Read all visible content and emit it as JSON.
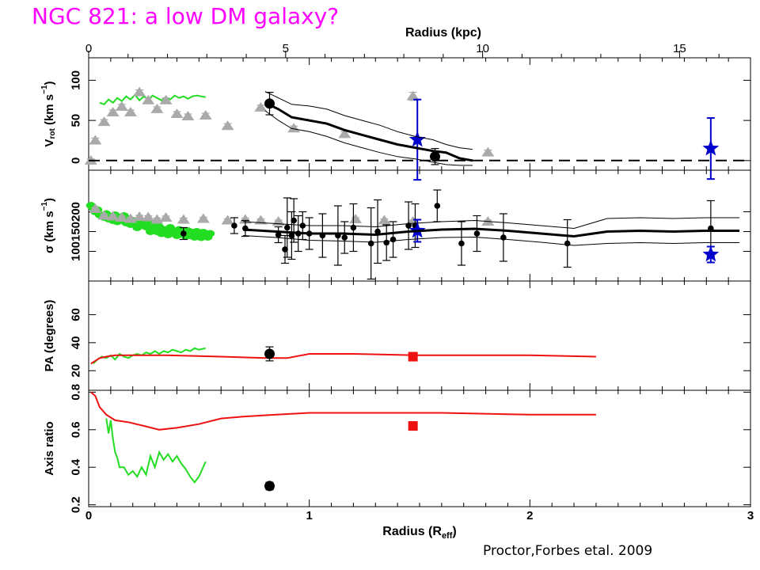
{
  "title": "NGC 821: a low DM galaxy?",
  "credit": "Proctor,Forbes etal. 2009",
  "colors": {
    "magenta": "#ff00ff",
    "green": "#22dd22",
    "gray": "#aaaaaa",
    "blue": "#0000cc",
    "red": "#ee1111",
    "black": "#000000"
  },
  "chart_data": {
    "type": "scatter",
    "top_axis": {
      "label": "Radius (kpc)",
      "ticks": [
        0,
        5,
        10,
        15
      ],
      "range": [
        0,
        16.8
      ]
    },
    "bottom_axis": {
      "label": "Radius (R_eff)",
      "label_main": "Radius (R",
      "label_sub": "eff",
      "label_end": ")",
      "ticks": [
        0,
        1,
        2,
        3
      ],
      "range": [
        0,
        3
      ]
    },
    "panels": [
      {
        "id": "vrot",
        "ylabel_parts": [
          "V",
          "rot",
          " (km s",
          "−1",
          ")"
        ],
        "yticks": [
          0,
          50,
          100
        ],
        "ylim": [
          -12,
          128
        ],
        "series": [
          {
            "name": "green_line",
            "type": "line",
            "x": [
              0.05,
              0.07,
              0.09,
              0.11,
              0.13,
              0.15,
              0.17,
              0.19,
              0.21,
              0.23,
              0.25,
              0.27,
              0.29,
              0.31,
              0.33,
              0.35,
              0.37,
              0.39,
              0.41,
              0.43,
              0.45,
              0.47,
              0.49,
              0.51,
              0.53
            ],
            "y": [
              72,
              70,
              76,
              72,
              78,
              74,
              80,
              76,
              82,
              75,
              80,
              76,
              81,
              78,
              75,
              79,
              76,
              81,
              78,
              80,
              77,
              80,
              81,
              80,
              79
            ]
          },
          {
            "name": "gray_triangles",
            "type": "scatter",
            "x": [
              0.01,
              0.03,
              0.07,
              0.11,
              0.15,
              0.19,
              0.23,
              0.27,
              0.31,
              0.35,
              0.4,
              0.45,
              0.53,
              0.63,
              0.78,
              0.93,
              1.16,
              1.47,
              1.81
            ],
            "y": [
              0,
              25,
              48,
              60,
              67,
              60,
              85,
              75,
              64,
              75,
              58,
              55,
              56,
              43,
              66,
              40,
              33,
              80,
              10
            ],
            "yerr": [
              2,
              3,
              3,
              3,
              3,
              3,
              3,
              3,
              3,
              3,
              3,
              3,
              3,
              3,
              3,
              3,
              3,
              5,
              3
            ]
          },
          {
            "name": "black_circles",
            "type": "scatter",
            "x": [
              0.82,
              1.57
            ],
            "y": [
              71,
              5
            ],
            "yerr": [
              14,
              10
            ]
          },
          {
            "name": "blue_stars",
            "type": "scatter",
            "x": [
              1.49,
              2.82
            ],
            "y": [
              26,
              15
            ],
            "yerr": [
              50,
              38
            ]
          },
          {
            "name": "model",
            "type": "line",
            "x": [
              0.8,
              0.86,
              0.92,
              1.0,
              1.08,
              1.16,
              1.24,
              1.32,
              1.4,
              1.48,
              1.56,
              1.62,
              1.68,
              1.74
            ],
            "y": [
              72,
              64,
              54,
              50,
              46,
              38,
              32,
              26,
              20,
              16,
              12,
              10,
              3,
              0
            ]
          },
          {
            "name": "model_upper",
            "type": "line",
            "x": [
              0.8,
              0.86,
              0.92,
              1.0,
              1.08,
              1.16,
              1.24,
              1.32,
              1.4,
              1.48,
              1.56,
              1.62,
              1.68,
              1.74
            ],
            "y": [
              86,
              78,
              70,
              68,
              64,
              56,
              50,
              44,
              36,
              30,
              26,
              20,
              16,
              14
            ]
          },
          {
            "name": "model_lower",
            "type": "line",
            "x": [
              0.8,
              0.86,
              0.92,
              1.0,
              1.08,
              1.16,
              1.24,
              1.32,
              1.4,
              1.48,
              1.56,
              1.62,
              1.68,
              1.74
            ],
            "y": [
              62,
              50,
              40,
              36,
              30,
              22,
              16,
              10,
              5,
              2,
              -2,
              -5,
              -6,
              -6
            ]
          },
          {
            "name": "zero",
            "type": "line",
            "dashed": true,
            "x": [
              0,
              3
            ],
            "y": [
              0,
              0
            ]
          }
        ]
      },
      {
        "id": "sigma",
        "ylabel_parts": [
          "σ (km s",
          "−1",
          ")"
        ],
        "yticks": [
          100,
          150,
          200
        ],
        "ylim": [
          25,
          305
        ],
        "series": [
          {
            "name": "green_points",
            "type": "scatter",
            "x": [
              0.01,
              0.02,
              0.03,
              0.04,
              0.05,
              0.06,
              0.07,
              0.08,
              0.09,
              0.1,
              0.11,
              0.12,
              0.13,
              0.14,
              0.15,
              0.16,
              0.17,
              0.18,
              0.19,
              0.2,
              0.21,
              0.22,
              0.23,
              0.24,
              0.25,
              0.26,
              0.27,
              0.28,
              0.29,
              0.3,
              0.31,
              0.32,
              0.33,
              0.34,
              0.35,
              0.36,
              0.37,
              0.38,
              0.39,
              0.4,
              0.41,
              0.42,
              0.43,
              0.44,
              0.45,
              0.46,
              0.47,
              0.48,
              0.49,
              0.5,
              0.51,
              0.52,
              0.53,
              0.54,
              0.55
            ],
            "y": [
              216,
              210,
              200,
              205,
              192,
              190,
              186,
              195,
              182,
              188,
              178,
              192,
              175,
              185,
              180,
              190,
              172,
              182,
              168,
              178,
              175,
              160,
              170,
              176,
              168,
              162,
              172,
              150,
              165,
              158,
              150,
              162,
              145,
              155,
              152,
              142,
              160,
              148,
              150,
              140,
              155,
              145,
              150,
              138,
              152,
              140,
              148,
              136,
              150,
              142,
              135,
              148,
              140,
              136,
              145
            ]
          },
          {
            "name": "gray_triangles",
            "type": "scatter",
            "x": [
              0.03,
              0.07,
              0.11,
              0.15,
              0.19,
              0.23,
              0.27,
              0.31,
              0.35,
              0.43,
              0.52,
              0.63,
              0.71,
              0.78,
              0.86,
              1.21,
              1.34,
              1.47,
              1.81
            ],
            "y": [
              207,
              190,
              188,
              185,
              182,
              187,
              186,
              180,
              185,
              180,
              182,
              178,
              180,
              178,
              175,
              181,
              178,
              175,
              175
            ],
            "yerr": [
              4,
              4,
              4,
              4,
              4,
              4,
              4,
              4,
              4,
              4,
              4,
              4,
              4,
              4,
              4,
              4,
              4,
              4,
              4
            ]
          },
          {
            "name": "black_points",
            "type": "scatter",
            "x": [
              0.43,
              0.66,
              0.71,
              0.86,
              0.89,
              0.9,
              0.92,
              0.93,
              0.95,
              0.97,
              1.0,
              1.06,
              1.13,
              1.16,
              1.2,
              1.28,
              1.31,
              1.35,
              1.38,
              1.45,
              1.48,
              1.58,
              1.69,
              1.76,
              1.88,
              2.17,
              2.82
            ],
            "y": [
              145,
              165,
              158,
              142,
              105,
              160,
              140,
              178,
              145,
              165,
              145,
              140,
              140,
              135,
              160,
              120,
              150,
              122,
              130,
              165,
              165,
              215,
              120,
              145,
              135,
              120,
              158
            ],
            "yerr": [
              15,
              20,
              20,
              20,
              35,
              75,
              60,
              55,
              45,
              35,
              40,
              55,
              75,
              40,
              60,
              90,
              80,
              45,
              45,
              60,
              55,
              40,
              55,
              45,
              60,
              60,
              70
            ]
          },
          {
            "name": "blue_stars",
            "type": "scatter",
            "x": [
              1.49,
              2.82
            ],
            "y": [
              152,
              92
            ],
            "yerr": [
              28,
              20
            ]
          },
          {
            "name": "model",
            "type": "line",
            "x": [
              0.7,
              0.85,
              1.0,
              1.15,
              1.3,
              1.45,
              1.6,
              1.75,
              1.9,
              2.05,
              2.2,
              2.35,
              2.5,
              2.65,
              2.8,
              2.95
            ],
            "y": [
              155,
              150,
              145,
              145,
              142,
              150,
              155,
              157,
              152,
              145,
              138,
              150,
              152,
              150,
              152,
              152
            ]
          },
          {
            "name": "model_upper",
            "type": "line",
            "x": [
              0.7,
              0.85,
              1.0,
              1.15,
              1.3,
              1.45,
              1.6,
              1.75,
              1.9,
              2.05,
              2.2,
              2.35,
              2.5,
              2.65,
              2.8,
              2.95
            ],
            "y": [
              175,
              170,
              165,
              165,
              162,
              170,
              175,
              178,
              172,
              165,
              158,
              183,
              185,
              183,
              185,
              185
            ]
          },
          {
            "name": "model_lower",
            "type": "line",
            "x": [
              0.7,
              0.85,
              1.0,
              1.15,
              1.3,
              1.45,
              1.6,
              1.75,
              1.9,
              2.05,
              2.2,
              2.35,
              2.5,
              2.65,
              2.8,
              2.95
            ],
            "y": [
              140,
              135,
              128,
              126,
              123,
              130,
              135,
              136,
              130,
              123,
              115,
              120,
              122,
              120,
              122,
              122
            ]
          }
        ]
      },
      {
        "id": "pa",
        "ylabel_parts": [
          "PA (degrees)"
        ],
        "yticks": [
          20,
          40,
          60
        ],
        "ylim": [
          6,
          84
        ],
        "series": [
          {
            "name": "green_line",
            "type": "line",
            "x": [
              0.02,
              0.04,
              0.06,
              0.08,
              0.1,
              0.12,
              0.14,
              0.16,
              0.18,
              0.2,
              0.22,
              0.24,
              0.26,
              0.28,
              0.3,
              0.32,
              0.34,
              0.36,
              0.38,
              0.4,
              0.42,
              0.44,
              0.46,
              0.48,
              0.5,
              0.53
            ],
            "y": [
              25,
              28,
              30,
              29,
              31,
              28,
              32,
              30,
              29,
              31,
              32,
              31,
              33,
              32,
              34,
              32,
              34,
              33,
              35,
              34,
              33,
              35,
              34,
              36,
              35,
              36
            ]
          },
          {
            "name": "red_line",
            "type": "line",
            "x": [
              0.01,
              0.03,
              0.05,
              0.08,
              0.12,
              0.2,
              0.35,
              0.6,
              0.8,
              0.9,
              1.0,
              1.2,
              1.5,
              2.0,
              2.3
            ],
            "y": [
              25,
              27,
              29,
              30,
              31,
              31,
              31,
              30,
              29,
              29,
              32,
              32,
              31,
              31,
              30
            ]
          },
          {
            "name": "black_circles",
            "type": "scatter",
            "x": [
              0.82
            ],
            "y": [
              32
            ],
            "yerr": [
              5
            ]
          },
          {
            "name": "red_squares",
            "type": "scatter",
            "x": [
              1.47
            ],
            "y": [
              30
            ]
          }
        ]
      },
      {
        "id": "axis_ratio",
        "ylabel_parts": [
          "Axis ratio"
        ],
        "yticks": [
          0.2,
          0.4,
          0.6,
          0.8
        ],
        "ylim": [
          0.19,
          0.81
        ],
        "series": [
          {
            "name": "green_line",
            "type": "line",
            "x": [
              0.08,
              0.09,
              0.1,
              0.11,
              0.12,
              0.13,
              0.14,
              0.16,
              0.18,
              0.2,
              0.22,
              0.24,
              0.26,
              0.28,
              0.3,
              0.32,
              0.34,
              0.36,
              0.38,
              0.4,
              0.42,
              0.44,
              0.46,
              0.48,
              0.5,
              0.53
            ],
            "y": [
              0.66,
              0.58,
              0.65,
              0.55,
              0.48,
              0.45,
              0.4,
              0.4,
              0.36,
              0.38,
              0.35,
              0.4,
              0.36,
              0.46,
              0.4,
              0.48,
              0.44,
              0.47,
              0.43,
              0.46,
              0.42,
              0.39,
              0.35,
              0.32,
              0.35,
              0.43
            ]
          },
          {
            "name": "red_line",
            "type": "line",
            "x": [
              0.01,
              0.03,
              0.05,
              0.08,
              0.12,
              0.18,
              0.25,
              0.32,
              0.4,
              0.5,
              0.6,
              0.7,
              0.85,
              1.0,
              1.3,
              1.6,
              2.0,
              2.3
            ],
            "y": [
              0.8,
              0.78,
              0.72,
              0.68,
              0.65,
              0.64,
              0.62,
              0.6,
              0.61,
              0.63,
              0.66,
              0.67,
              0.68,
              0.69,
              0.69,
              0.69,
              0.68,
              0.68
            ]
          },
          {
            "name": "black_circles",
            "type": "scatter",
            "x": [
              0.82
            ],
            "y": [
              0.3
            ],
            "yerr": [
              0.02
            ]
          },
          {
            "name": "red_squares",
            "type": "scatter",
            "x": [
              1.47
            ],
            "y": [
              0.62
            ]
          }
        ]
      }
    ]
  }
}
